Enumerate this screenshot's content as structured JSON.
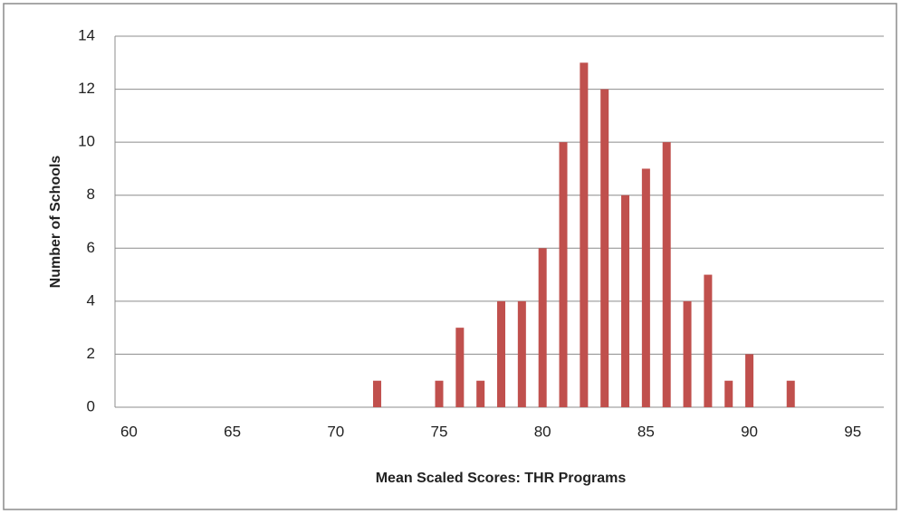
{
  "chart_data": {
    "type": "bar",
    "x_label": "Mean Scaled Scores: THR Programs",
    "y_label": "Number of Schools",
    "categories": [
      60,
      null,
      null,
      null,
      null,
      65,
      null,
      null,
      null,
      null,
      70,
      null,
      null,
      null,
      null,
      75,
      null,
      null,
      null,
      null,
      80,
      null,
      null,
      null,
      null,
      85,
      null,
      null,
      null,
      null,
      90,
      null,
      null,
      null,
      null,
      95,
      null
    ],
    "values": [
      0,
      0,
      0,
      0,
      0,
      0,
      0,
      0,
      0,
      0,
      0,
      0,
      1,
      0,
      0,
      1,
      3,
      1,
      4,
      4,
      6,
      10,
      13,
      12,
      8,
      9,
      10,
      4,
      5,
      1,
      2,
      0,
      1,
      0,
      0,
      0,
      0
    ],
    "color": "#c0504d",
    "ylim": [
      0,
      14
    ],
    "yticks": [
      0,
      2,
      4,
      6,
      8,
      10,
      12,
      14
    ],
    "grid": true
  }
}
